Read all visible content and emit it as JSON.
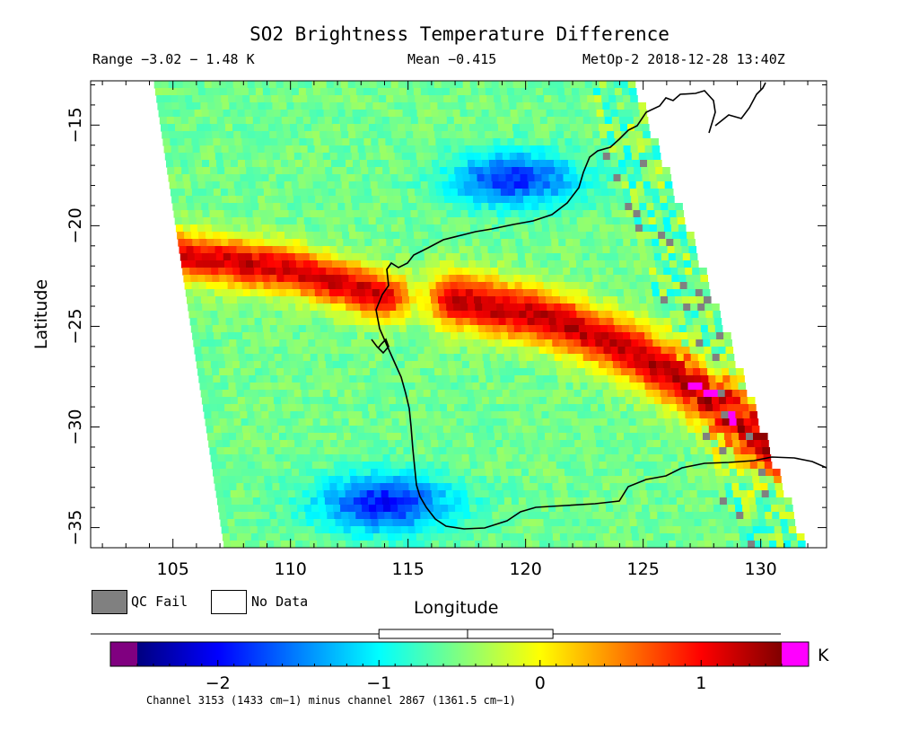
{
  "title": "SO2 Brightness Temperature Difference",
  "stats": {
    "range": "Range −3.02 − 1.48 K",
    "mean": "Mean −0.415",
    "satellite": "MetOp-2 2018-12-28 13:40Z"
  },
  "chart_data": {
    "type": "heatmap",
    "title": "SO2 Brightness Temperature Difference",
    "xlabel": "Longitude",
    "ylabel": "Latitude",
    "xlim": [
      101.5,
      132.8
    ],
    "ylim": [
      -36,
      -12.8
    ],
    "x_ticks": [
      105,
      110,
      115,
      120,
      125,
      130
    ],
    "x_tick_labels": [
      "105",
      "110",
      "115",
      "120",
      "125",
      "130"
    ],
    "y_ticks": [
      -15,
      -20,
      -25,
      -30,
      -35
    ],
    "y_tick_labels": [
      "−15",
      "−20",
      "−25",
      "−30",
      "−35"
    ],
    "value_range": [
      -3.02,
      1.48
    ],
    "mean": -0.415,
    "units": "K",
    "swath_corners_lonlat": [
      [
        104.2,
        -12.8
      ],
      [
        124.5,
        -12.8
      ],
      [
        131.8,
        -36
      ],
      [
        107.2,
        -36
      ]
    ],
    "features": [
      {
        "name": "positive band west",
        "center": [
          [
            104.2,
            -21.3
          ],
          [
            110,
            -22.2
          ],
          [
            114,
            -23.5
          ]
        ],
        "value": 1.0
      },
      {
        "name": "positive band east",
        "center": [
          [
            117,
            -23.7
          ],
          [
            121,
            -24.6
          ],
          [
            124.5,
            -26.2
          ],
          [
            128,
            -28.7
          ],
          [
            130.6,
            -31.2
          ]
        ],
        "value": 1.1
      },
      {
        "name": "negative patch north",
        "center": [
          119.5,
          -17.7
        ],
        "value": -1.7
      },
      {
        "name": "negative patch south",
        "center": [
          114,
          -33.8
        ],
        "value": -1.8
      }
    ]
  },
  "legend": {
    "qc_fail": "QC Fail",
    "no_data": "No Data",
    "qc_fail_color": "#808080",
    "no_data_color": "#ffffff"
  },
  "colorbar": {
    "min": -2.5,
    "max": 1.5,
    "below_range_color": "#800080",
    "above_range_color": "#ff00ff",
    "stops": [
      "#000080",
      "#0000ff",
      "#0080ff",
      "#00ffff",
      "#80ff80",
      "#ffff00",
      "#ff8000",
      "#ff0000",
      "#800000"
    ],
    "ticks": [
      -2,
      -1,
      0,
      1
    ],
    "tick_labels": [
      "−2",
      "−1",
      "0",
      "1"
    ],
    "unit_label": "K",
    "caption": "Channel 3153 (1433 cm−1) minus channel 2867 (1361.5 cm−1)",
    "boxplot": {
      "whisker_low": -3.02,
      "q1": -1.0,
      "median": -0.45,
      "q3": 0.08,
      "whisker_high": 1.48
    }
  }
}
